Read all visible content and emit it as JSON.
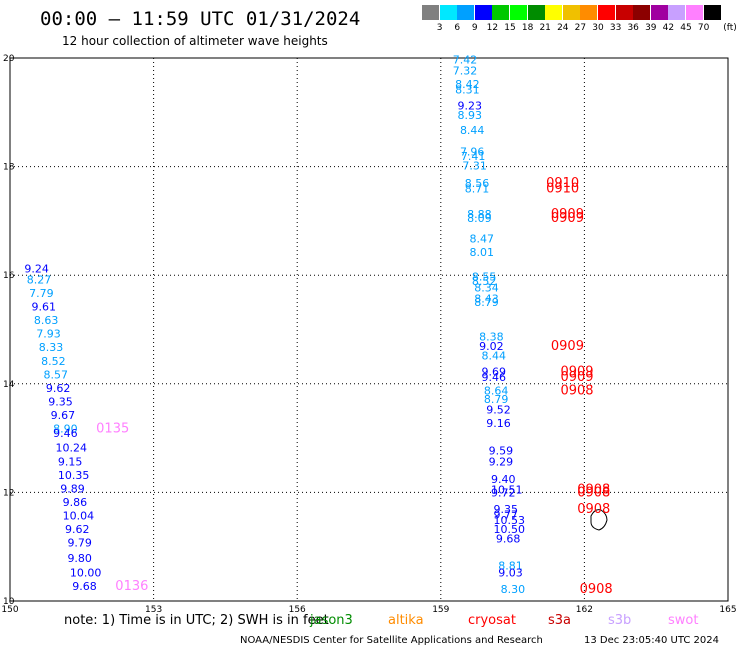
{
  "header": {
    "title": "00:00 – 11:59 UTC 01/31/2024",
    "subtitle": "12 hour collection of altimeter wave heights"
  },
  "legend": {
    "unit": "(ft)",
    "levels": [
      "3",
      "6",
      "9",
      "12",
      "15",
      "18",
      "21",
      "24",
      "27",
      "30",
      "33",
      "36",
      "39",
      "42",
      "45",
      "70"
    ],
    "colors": [
      "#808080",
      "#00e8ff",
      "#00a0ff",
      "#0000ff",
      "#00c800",
      "#00ff00",
      "#008c00",
      "#ffff00",
      "#f0c000",
      "#ff8c00",
      "#ff0000",
      "#c80000",
      "#8c0000",
      "#a000a0",
      "#c8a0ff",
      "#ff80ff",
      "#000000"
    ]
  },
  "footer": {
    "note": "note:  1) Time is in UTC; 2) SWH is in feet",
    "satellites": [
      {
        "name": "jason3",
        "color": "#008c00"
      },
      {
        "name": "altika",
        "color": "#ff8c00"
      },
      {
        "name": "cryosat",
        "color": "#ff0000"
      },
      {
        "name": "s3a",
        "color": "#c80000"
      },
      {
        "name": "s3b",
        "color": "#c8a0ff"
      },
      {
        "name": "swot",
        "color": "#ff80ff"
      }
    ],
    "credit": "NOAA/NESDIS Center for Satellite Applications and Research",
    "stamp": "13 Dec 23:05:40 UTC 2024"
  },
  "chart_data": {
    "type": "scatter",
    "xlim": [
      150,
      165
    ],
    "ylim": [
      10,
      20
    ],
    "xticks": [
      "150",
      "153",
      "156",
      "159",
      "162",
      "165"
    ],
    "yticks": [
      "10",
      "12",
      "14",
      "16",
      "18",
      "20"
    ],
    "grid": true,
    "labels": [
      {
        "x": 159.25,
        "y": 19.9,
        "text": "7.42",
        "color": "#00a0ff"
      },
      {
        "x": 159.25,
        "y": 19.7,
        "text": "7.32",
        "color": "#00a0ff"
      },
      {
        "x": 159.3,
        "y": 19.45,
        "text": "8.42",
        "color": "#00a0ff"
      },
      {
        "x": 159.3,
        "y": 19.35,
        "text": "8.31",
        "color": "#00a0ff"
      },
      {
        "x": 159.35,
        "y": 19.05,
        "text": "9.23",
        "color": "#0000ff"
      },
      {
        "x": 159.35,
        "y": 18.88,
        "text": "8.93",
        "color": "#00a0ff"
      },
      {
        "x": 159.4,
        "y": 18.6,
        "text": "8.44",
        "color": "#00a0ff"
      },
      {
        "x": 159.4,
        "y": 18.2,
        "text": "7.96",
        "color": "#00a0ff"
      },
      {
        "x": 159.42,
        "y": 18.12,
        "text": "7.41",
        "color": "#00a0ff"
      },
      {
        "x": 159.45,
        "y": 17.95,
        "text": "7.31",
        "color": "#00a0ff"
      },
      {
        "x": 159.5,
        "y": 17.62,
        "text": "8.56",
        "color": "#00a0ff"
      },
      {
        "x": 159.5,
        "y": 17.52,
        "text": "8.71",
        "color": "#00a0ff"
      },
      {
        "x": 161.2,
        "y": 17.62,
        "text": "0910",
        "color": "#ff0000"
      },
      {
        "x": 161.2,
        "y": 17.52,
        "text": "0910",
        "color": "#ff0000"
      },
      {
        "x": 159.55,
        "y": 17.05,
        "text": "8.88",
        "color": "#00a0ff"
      },
      {
        "x": 159.55,
        "y": 16.98,
        "text": "8.09",
        "color": "#00a0ff"
      },
      {
        "x": 161.3,
        "y": 17.05,
        "text": "0909",
        "color": "#ff0000"
      },
      {
        "x": 161.3,
        "y": 16.98,
        "text": "0909",
        "color": "#ff0000"
      },
      {
        "x": 159.6,
        "y": 16.6,
        "text": "8.47",
        "color": "#00a0ff"
      },
      {
        "x": 159.6,
        "y": 16.35,
        "text": "8.01",
        "color": "#00a0ff"
      },
      {
        "x": 159.65,
        "y": 15.9,
        "text": "8.55",
        "color": "#00a0ff"
      },
      {
        "x": 159.65,
        "y": 15.82,
        "text": "8.52",
        "color": "#00a0ff"
      },
      {
        "x": 159.7,
        "y": 15.7,
        "text": "8.34",
        "color": "#00a0ff"
      },
      {
        "x": 159.7,
        "y": 15.5,
        "text": "8.43",
        "color": "#00a0ff"
      },
      {
        "x": 159.7,
        "y": 15.43,
        "text": "8.79",
        "color": "#00a0ff"
      },
      {
        "x": 159.8,
        "y": 14.8,
        "text": "8.38",
        "color": "#00a0ff"
      },
      {
        "x": 159.8,
        "y": 14.62,
        "text": "9.02",
        "color": "#0000ff"
      },
      {
        "x": 161.3,
        "y": 14.62,
        "text": "0909",
        "color": "#ff0000"
      },
      {
        "x": 159.85,
        "y": 14.45,
        "text": "8.44",
        "color": "#00a0ff"
      },
      {
        "x": 159.85,
        "y": 14.15,
        "text": "9.69",
        "color": "#0000ff"
      },
      {
        "x": 159.85,
        "y": 14.05,
        "text": "9.46",
        "color": "#0000ff"
      },
      {
        "x": 161.5,
        "y": 14.15,
        "text": "0909",
        "color": "#ff0000"
      },
      {
        "x": 161.5,
        "y": 14.05,
        "text": "0909",
        "color": "#ff0000"
      },
      {
        "x": 159.9,
        "y": 13.8,
        "text": "8.64",
        "color": "#00a0ff"
      },
      {
        "x": 161.5,
        "y": 13.8,
        "text": "0908",
        "color": "#ff0000"
      },
      {
        "x": 159.9,
        "y": 13.65,
        "text": "8.79",
        "color": "#00a0ff"
      },
      {
        "x": 159.95,
        "y": 13.45,
        "text": "9.52",
        "color": "#0000ff"
      },
      {
        "x": 159.95,
        "y": 13.2,
        "text": "9.16",
        "color": "#0000ff"
      },
      {
        "x": 160.0,
        "y": 12.7,
        "text": "9.59",
        "color": "#0000ff"
      },
      {
        "x": 160.0,
        "y": 12.5,
        "text": "9.29",
        "color": "#0000ff"
      },
      {
        "x": 160.05,
        "y": 12.17,
        "text": "9.40",
        "color": "#0000ff"
      },
      {
        "x": 160.05,
        "y": 11.98,
        "text": "10.51",
        "color": "#0000ff"
      },
      {
        "x": 160.05,
        "y": 11.92,
        "text": "9.72",
        "color": "#0000ff"
      },
      {
        "x": 161.85,
        "y": 11.98,
        "text": "0908",
        "color": "#ff0000"
      },
      {
        "x": 161.85,
        "y": 11.92,
        "text": "0908",
        "color": "#ff0000"
      },
      {
        "x": 160.1,
        "y": 11.62,
        "text": "9.35",
        "color": "#0000ff"
      },
      {
        "x": 161.85,
        "y": 11.62,
        "text": "0908",
        "color": "#ff0000"
      },
      {
        "x": 160.1,
        "y": 11.52,
        "text": "9.77",
        "color": "#0000ff"
      },
      {
        "x": 160.1,
        "y": 11.42,
        "text": "10.53",
        "color": "#0000ff"
      },
      {
        "x": 160.1,
        "y": 11.25,
        "text": "10.50",
        "color": "#0000ff"
      },
      {
        "x": 160.15,
        "y": 11.08,
        "text": "9.68",
        "color": "#0000ff"
      },
      {
        "x": 160.2,
        "y": 10.58,
        "text": "8.81",
        "color": "#00a0ff"
      },
      {
        "x": 160.2,
        "y": 10.45,
        "text": "9.03",
        "color": "#0000ff"
      },
      {
        "x": 160.25,
        "y": 10.15,
        "text": "8.30",
        "color": "#00a0ff"
      },
      {
        "x": 161.9,
        "y": 10.15,
        "text": "0908",
        "color": "#ff0000"
      },
      {
        "x": 150.3,
        "y": 16.05,
        "text": "9.24",
        "color": "#0000ff"
      },
      {
        "x": 150.35,
        "y": 15.85,
        "text": "8.27",
        "color": "#00a0ff"
      },
      {
        "x": 150.4,
        "y": 15.6,
        "text": "7.79",
        "color": "#00a0ff"
      },
      {
        "x": 150.45,
        "y": 15.35,
        "text": "9.61",
        "color": "#0000ff"
      },
      {
        "x": 150.5,
        "y": 15.1,
        "text": "8.63",
        "color": "#00a0ff"
      },
      {
        "x": 150.55,
        "y": 14.85,
        "text": "7.93",
        "color": "#00a0ff"
      },
      {
        "x": 150.6,
        "y": 14.6,
        "text": "8.33",
        "color": "#00a0ff"
      },
      {
        "x": 150.65,
        "y": 14.35,
        "text": "8.52",
        "color": "#00a0ff"
      },
      {
        "x": 150.7,
        "y": 14.1,
        "text": "8.57",
        "color": "#00a0ff"
      },
      {
        "x": 150.75,
        "y": 13.85,
        "text": "9.62",
        "color": "#0000ff"
      },
      {
        "x": 150.8,
        "y": 13.6,
        "text": "9.35",
        "color": "#0000ff"
      },
      {
        "x": 150.85,
        "y": 13.35,
        "text": "9.67",
        "color": "#0000ff"
      },
      {
        "x": 150.9,
        "y": 13.1,
        "text": "8.90",
        "color": "#00a0ff"
      },
      {
        "x": 150.9,
        "y": 13.02,
        "text": "9.46",
        "color": "#0000ff"
      },
      {
        "x": 151.8,
        "y": 13.1,
        "text": "0135",
        "color": "#ff80ff"
      },
      {
        "x": 150.95,
        "y": 12.75,
        "text": "10.24",
        "color": "#0000ff"
      },
      {
        "x": 151.0,
        "y": 12.5,
        "text": "9.15",
        "color": "#0000ff"
      },
      {
        "x": 151.0,
        "y": 12.25,
        "text": "10.35",
        "color": "#0000ff"
      },
      {
        "x": 151.05,
        "y": 12.0,
        "text": "9.89",
        "color": "#0000ff"
      },
      {
        "x": 151.1,
        "y": 11.75,
        "text": "9.86",
        "color": "#0000ff"
      },
      {
        "x": 151.1,
        "y": 11.5,
        "text": "10.04",
        "color": "#0000ff"
      },
      {
        "x": 151.15,
        "y": 11.25,
        "text": "9.62",
        "color": "#0000ff"
      },
      {
        "x": 151.2,
        "y": 11.0,
        "text": "9.79",
        "color": "#0000ff"
      },
      {
        "x": 151.2,
        "y": 10.72,
        "text": "9.80",
        "color": "#0000ff"
      },
      {
        "x": 151.25,
        "y": 10.45,
        "text": "10.00",
        "color": "#0000ff"
      },
      {
        "x": 151.3,
        "y": 10.2,
        "text": "9.68",
        "color": "#0000ff"
      },
      {
        "x": 152.2,
        "y": 10.2,
        "text": "0136",
        "color": "#ff80ff"
      }
    ]
  }
}
